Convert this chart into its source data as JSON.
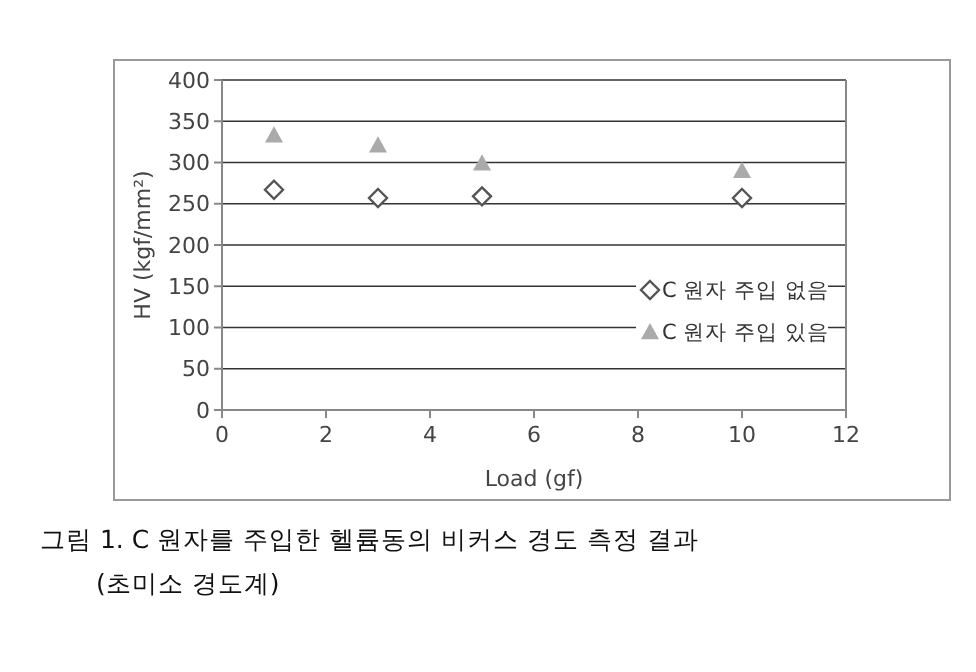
{
  "chart_data": {
    "type": "scatter",
    "xlabel": "Load (gf)",
    "ylabel": "HV (kgf/mm²)",
    "series": [
      {
        "name": "C 원자 주입 없음",
        "color": "#555555",
        "marker": "diamond",
        "x": [
          1,
          3,
          5,
          10
        ],
        "values": [
          267,
          257,
          259,
          257
        ]
      },
      {
        "name": "C 원자 주입 있음",
        "color": "#aaaaaa",
        "marker": "triangle",
        "x": [
          1,
          3,
          5,
          10
        ],
        "values": [
          333,
          321,
          299,
          290
        ]
      }
    ],
    "xlim": [
      0,
      12
    ],
    "xticks": [
      0,
      2,
      4,
      6,
      8,
      10,
      12
    ],
    "ylim": [
      0,
      400
    ],
    "yticks": [
      0,
      50,
      100,
      150,
      200,
      250,
      300,
      350,
      400
    ],
    "grid": "y",
    "legend": "bottom right",
    "annotations": [
      "그림 1. C 원자를 주입한 헬륨동의 비커스 경도 측정 결과",
      "(초미소 경도계)"
    ]
  }
}
